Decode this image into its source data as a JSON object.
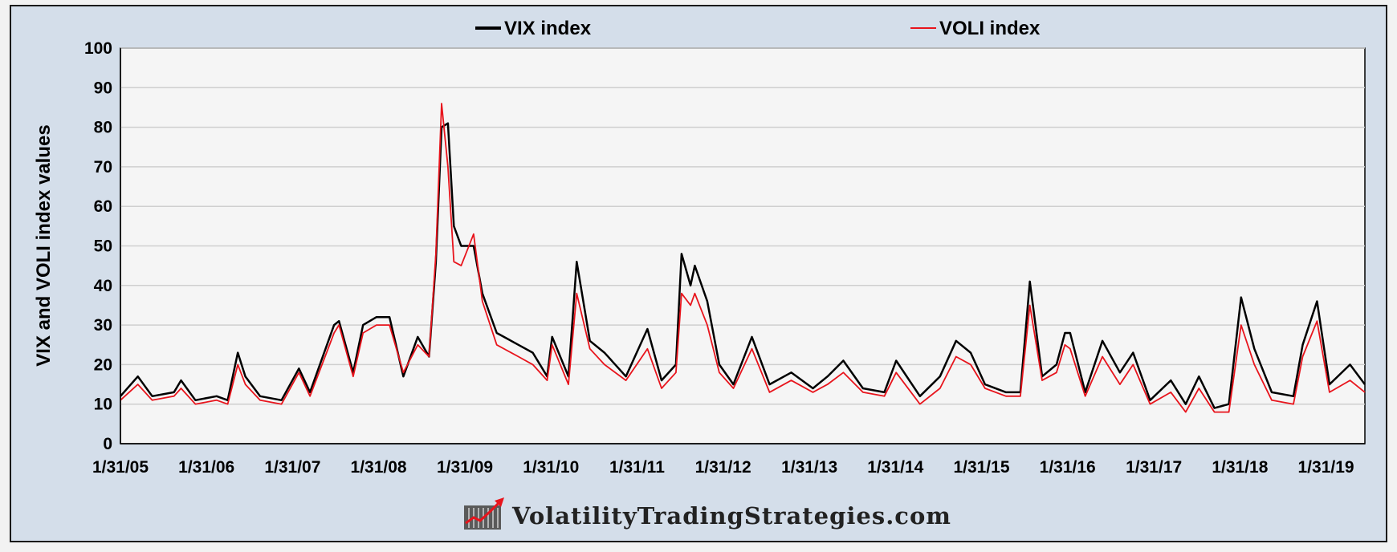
{
  "chart_data": {
    "type": "line",
    "title": "",
    "xlabel": "",
    "ylabel": "VIX and VOLI index values",
    "ylim": [
      0,
      100
    ],
    "yticks": [
      0,
      10,
      20,
      30,
      40,
      50,
      60,
      70,
      80,
      90,
      100
    ],
    "xlim": [
      "2005-01-31",
      "2019-07-15"
    ],
    "xtick_labels": [
      "1/31/05",
      "1/31/06",
      "1/31/07",
      "1/31/08",
      "1/31/09",
      "1/31/10",
      "1/31/11",
      "1/31/12",
      "1/31/13",
      "1/31/14",
      "1/31/15",
      "1/31/16",
      "1/31/17",
      "1/31/18",
      "1/31/19"
    ],
    "grid": {
      "horizontal": true,
      "vertical": false
    },
    "legend_position": "top",
    "series": [
      {
        "name": "VIX index",
        "color": "#000000",
        "points": [
          [
            "2005-01-31",
            12
          ],
          [
            "2005-04-15",
            17
          ],
          [
            "2005-06-15",
            12
          ],
          [
            "2005-09-15",
            13
          ],
          [
            "2005-10-15",
            16
          ],
          [
            "2005-12-15",
            11
          ],
          [
            "2006-03-15",
            12
          ],
          [
            "2006-05-01",
            11
          ],
          [
            "2006-06-13",
            23
          ],
          [
            "2006-07-15",
            17
          ],
          [
            "2006-09-15",
            12
          ],
          [
            "2006-12-15",
            11
          ],
          [
            "2007-02-27",
            19
          ],
          [
            "2007-04-15",
            13
          ],
          [
            "2007-07-26",
            30
          ],
          [
            "2007-08-16",
            31
          ],
          [
            "2007-10-15",
            18
          ],
          [
            "2007-11-26",
            30
          ],
          [
            "2008-01-22",
            32
          ],
          [
            "2008-03-17",
            32
          ],
          [
            "2008-05-15",
            17
          ],
          [
            "2008-07-15",
            27
          ],
          [
            "2008-09-01",
            22
          ],
          [
            "2008-09-30",
            46
          ],
          [
            "2008-10-24",
            80
          ],
          [
            "2008-11-20",
            81
          ],
          [
            "2008-12-15",
            55
          ],
          [
            "2009-01-15",
            50
          ],
          [
            "2009-03-09",
            50
          ],
          [
            "2009-04-15",
            38
          ],
          [
            "2009-06-15",
            28
          ],
          [
            "2009-09-15",
            25
          ],
          [
            "2009-11-15",
            23
          ],
          [
            "2010-01-15",
            17
          ],
          [
            "2010-02-05",
            27
          ],
          [
            "2010-04-15",
            17
          ],
          [
            "2010-05-20",
            46
          ],
          [
            "2010-07-15",
            26
          ],
          [
            "2010-09-15",
            23
          ],
          [
            "2010-12-15",
            17
          ],
          [
            "2011-03-16",
            29
          ],
          [
            "2011-05-15",
            16
          ],
          [
            "2011-07-15",
            20
          ],
          [
            "2011-08-08",
            48
          ],
          [
            "2011-09-15",
            40
          ],
          [
            "2011-10-03",
            45
          ],
          [
            "2011-11-25",
            36
          ],
          [
            "2012-01-15",
            20
          ],
          [
            "2012-03-15",
            15
          ],
          [
            "2012-06-01",
            27
          ],
          [
            "2012-08-15",
            15
          ],
          [
            "2012-11-15",
            18
          ],
          [
            "2013-02-15",
            14
          ],
          [
            "2013-04-18",
            17
          ],
          [
            "2013-06-24",
            21
          ],
          [
            "2013-09-15",
            14
          ],
          [
            "2013-12-15",
            13
          ],
          [
            "2014-02-03",
            21
          ],
          [
            "2014-05-15",
            12
          ],
          [
            "2014-08-08",
            17
          ],
          [
            "2014-10-15",
            26
          ],
          [
            "2014-12-16",
            23
          ],
          [
            "2015-02-15",
            15
          ],
          [
            "2015-05-15",
            13
          ],
          [
            "2015-07-15",
            13
          ],
          [
            "2015-08-24",
            41
          ],
          [
            "2015-10-15",
            17
          ],
          [
            "2015-12-15",
            20
          ],
          [
            "2016-01-20",
            28
          ],
          [
            "2016-02-11",
            28
          ],
          [
            "2016-04-15",
            13
          ],
          [
            "2016-06-27",
            26
          ],
          [
            "2016-09-09",
            18
          ],
          [
            "2016-11-04",
            23
          ],
          [
            "2017-01-15",
            11
          ],
          [
            "2017-04-13",
            16
          ],
          [
            "2017-06-15",
            10
          ],
          [
            "2017-08-10",
            17
          ],
          [
            "2017-10-15",
            9
          ],
          [
            "2017-12-15",
            10
          ],
          [
            "2018-02-05",
            37
          ],
          [
            "2018-04-02",
            24
          ],
          [
            "2018-06-15",
            13
          ],
          [
            "2018-09-15",
            12
          ],
          [
            "2018-10-24",
            25
          ],
          [
            "2018-12-24",
            36
          ],
          [
            "2019-02-15",
            15
          ],
          [
            "2019-05-13",
            20
          ],
          [
            "2019-07-15",
            15
          ]
        ]
      },
      {
        "name": "VOLI index",
        "color": "#e8141c",
        "points": [
          [
            "2005-01-31",
            11
          ],
          [
            "2005-04-15",
            15
          ],
          [
            "2005-06-15",
            11
          ],
          [
            "2005-09-15",
            12
          ],
          [
            "2005-10-15",
            14
          ],
          [
            "2005-12-15",
            10
          ],
          [
            "2006-03-15",
            11
          ],
          [
            "2006-05-01",
            10
          ],
          [
            "2006-06-13",
            20
          ],
          [
            "2006-07-15",
            15
          ],
          [
            "2006-09-15",
            11
          ],
          [
            "2006-12-15",
            10
          ],
          [
            "2007-02-27",
            18
          ],
          [
            "2007-04-15",
            12
          ],
          [
            "2007-07-26",
            28
          ],
          [
            "2007-08-16",
            30
          ],
          [
            "2007-10-15",
            17
          ],
          [
            "2007-11-26",
            28
          ],
          [
            "2008-01-22",
            30
          ],
          [
            "2008-03-17",
            30
          ],
          [
            "2008-05-15",
            18
          ],
          [
            "2008-07-15",
            25
          ],
          [
            "2008-09-01",
            22
          ],
          [
            "2008-09-30",
            48
          ],
          [
            "2008-10-24",
            86
          ],
          [
            "2008-11-20",
            70
          ],
          [
            "2008-12-15",
            46
          ],
          [
            "2009-01-15",
            45
          ],
          [
            "2009-03-09",
            53
          ],
          [
            "2009-04-15",
            36
          ],
          [
            "2009-06-15",
            25
          ],
          [
            "2009-09-15",
            22
          ],
          [
            "2009-11-15",
            20
          ],
          [
            "2010-01-15",
            16
          ],
          [
            "2010-02-05",
            25
          ],
          [
            "2010-04-15",
            15
          ],
          [
            "2010-05-20",
            38
          ],
          [
            "2010-07-15",
            24
          ],
          [
            "2010-09-15",
            20
          ],
          [
            "2010-12-15",
            16
          ],
          [
            "2011-03-16",
            24
          ],
          [
            "2011-05-15",
            14
          ],
          [
            "2011-07-15",
            18
          ],
          [
            "2011-08-08",
            38
          ],
          [
            "2011-09-15",
            35
          ],
          [
            "2011-10-03",
            38
          ],
          [
            "2011-11-25",
            30
          ],
          [
            "2012-01-15",
            18
          ],
          [
            "2012-03-15",
            14
          ],
          [
            "2012-06-01",
            24
          ],
          [
            "2012-08-15",
            13
          ],
          [
            "2012-11-15",
            16
          ],
          [
            "2013-02-15",
            13
          ],
          [
            "2013-04-18",
            15
          ],
          [
            "2013-06-24",
            18
          ],
          [
            "2013-09-15",
            13
          ],
          [
            "2013-12-15",
            12
          ],
          [
            "2014-02-03",
            18
          ],
          [
            "2014-05-15",
            10
          ],
          [
            "2014-08-08",
            14
          ],
          [
            "2014-10-15",
            22
          ],
          [
            "2014-12-16",
            20
          ],
          [
            "2015-02-15",
            14
          ],
          [
            "2015-05-15",
            12
          ],
          [
            "2015-07-15",
            12
          ],
          [
            "2015-08-24",
            35
          ],
          [
            "2015-10-15",
            16
          ],
          [
            "2015-12-15",
            18
          ],
          [
            "2016-01-20",
            25
          ],
          [
            "2016-02-11",
            24
          ],
          [
            "2016-04-15",
            12
          ],
          [
            "2016-06-27",
            22
          ],
          [
            "2016-09-09",
            15
          ],
          [
            "2016-11-04",
            20
          ],
          [
            "2017-01-15",
            10
          ],
          [
            "2017-04-13",
            13
          ],
          [
            "2017-06-15",
            8
          ],
          [
            "2017-08-10",
            14
          ],
          [
            "2017-10-15",
            8
          ],
          [
            "2017-12-15",
            8
          ],
          [
            "2018-02-05",
            30
          ],
          [
            "2018-04-02",
            20
          ],
          [
            "2018-06-15",
            11
          ],
          [
            "2018-09-15",
            10
          ],
          [
            "2018-10-24",
            22
          ],
          [
            "2018-12-24",
            31
          ],
          [
            "2019-02-15",
            13
          ],
          [
            "2019-05-13",
            16
          ],
          [
            "2019-07-15",
            13
          ]
        ]
      }
    ]
  },
  "watermark": {
    "text": "VolatilityTradingStrategies.com",
    "icon": "chart-logo-icon"
  },
  "colors": {
    "background": "#d4deea",
    "plot_area": "#f5f5f5",
    "gridline": "#cfcfcf",
    "frame_border": "#1a1a1a"
  }
}
